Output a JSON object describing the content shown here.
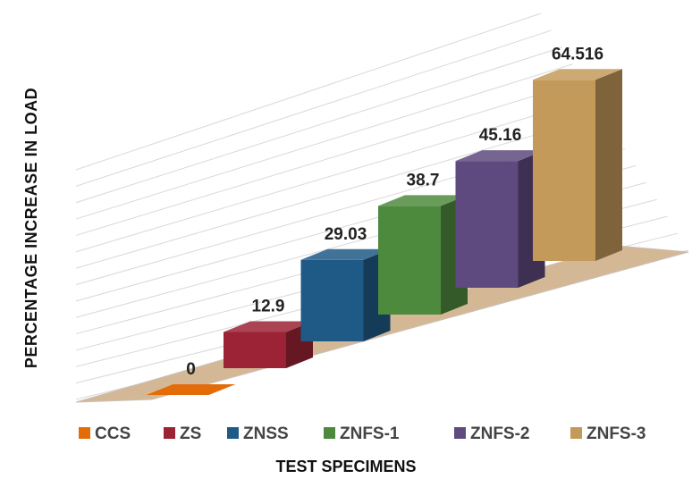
{
  "chart_data": {
    "type": "bar3d",
    "x_label": "TEST SPECIMENS",
    "y_label": "PERCENTAGE INCREASE IN LOAD",
    "ylim": [
      0,
      70
    ],
    "series": [
      {
        "name": "CCS",
        "color": "#e36c09",
        "values": [
          0
        ]
      },
      {
        "name": "ZS",
        "color": "#9b2335",
        "values": [
          12.9
        ]
      },
      {
        "name": "ZNSS",
        "color": "#1f5a87",
        "values": [
          29.03
        ]
      },
      {
        "name": "ZNFS-1",
        "color": "#4e8a3e",
        "values": [
          38.7
        ]
      },
      {
        "name": "ZNFS-2",
        "color": "#5e4a7e",
        "values": [
          45.16
        ]
      },
      {
        "name": "ZNFS-3",
        "color": "#c49a5a",
        "values": [
          64.516
        ]
      }
    ]
  }
}
